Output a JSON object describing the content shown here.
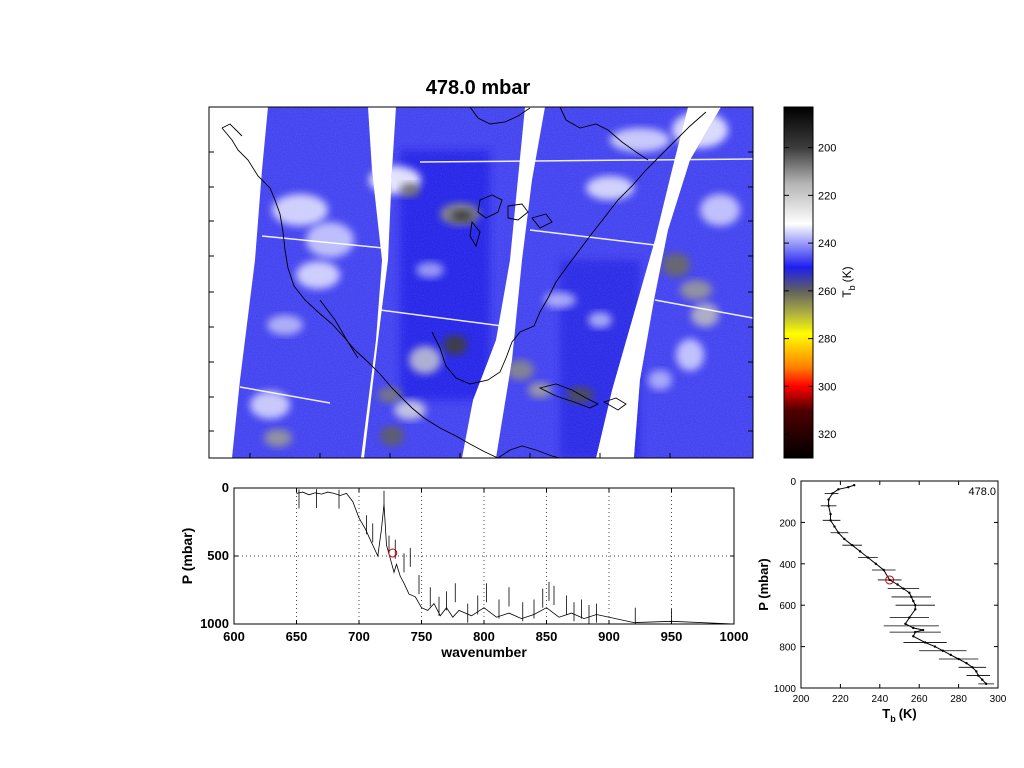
{
  "title": "478.0 mbar",
  "chart_data": [
    {
      "type": "heatmap",
      "title": "478.0 mbar",
      "description_of_content": null,
      "colorbar": {
        "label": "T_b (K)",
        "label_main": "T",
        "label_sub": "b",
        "label_unit": "(K)",
        "ticks": [
          200,
          220,
          240,
          260,
          280,
          300,
          320
        ],
        "range": [
          183,
          330
        ],
        "colormap_stops": [
          {
            "value": 183,
            "color": "#000000"
          },
          {
            "value": 200,
            "color": "#3c3c3c"
          },
          {
            "value": 215,
            "color": "#b4b4b4"
          },
          {
            "value": 232,
            "color": "#ffffff"
          },
          {
            "value": 250,
            "color": "#1e1ef0"
          },
          {
            "value": 260,
            "color": "#606060"
          },
          {
            "value": 270,
            "color": "#b4b440"
          },
          {
            "value": 278,
            "color": "#ffff00"
          },
          {
            "value": 292,
            "color": "#ff8000"
          },
          {
            "value": 300,
            "color": "#ff0000"
          },
          {
            "value": 310,
            "color": "#500000"
          },
          {
            "value": 330,
            "color": "#000000"
          }
        ]
      }
    },
    {
      "type": "line",
      "xlabel": "wavenumber",
      "ylabel": "P (mbar)",
      "xlim": [
        600,
        1000
      ],
      "ylim": [
        1000,
        0
      ],
      "y_reversed": true,
      "grid": true,
      "xticks": [
        600,
        650,
        700,
        750,
        800,
        850,
        900,
        950,
        1000
      ],
      "yticks": [
        0,
        500,
        1000
      ],
      "highlight": {
        "x": 727,
        "y": 478,
        "color": "#cc0000"
      },
      "series": [
        {
          "x": [
            650,
            655,
            660,
            665,
            670,
            675,
            680,
            685,
            690,
            695,
            700,
            705,
            710,
            715,
            718,
            720,
            722,
            725,
            728,
            730,
            733,
            736,
            740,
            745,
            750,
            755,
            760,
            765,
            770,
            775,
            780,
            790,
            800,
            810,
            820,
            830,
            840,
            850,
            860,
            870,
            880,
            890,
            920,
            950,
            1000
          ],
          "y": [
            40,
            30,
            50,
            35,
            45,
            30,
            40,
            55,
            40,
            100,
            220,
            300,
            400,
            500,
            300,
            120,
            420,
            520,
            620,
            560,
            650,
            700,
            780,
            800,
            880,
            900,
            850,
            940,
            880,
            950,
            900,
            940,
            880,
            950,
            920,
            960,
            930,
            880,
            950,
            920,
            960,
            930,
            990,
            980,
            1000
          ]
        }
      ],
      "spikes": [
        {
          "x": 652,
          "y": 10
        },
        {
          "x": 666,
          "y": 8
        },
        {
          "x": 684,
          "y": 12
        },
        {
          "x": 706,
          "y": 200
        },
        {
          "x": 711,
          "y": 260
        },
        {
          "x": 720,
          "y": 20
        },
        {
          "x": 724,
          "y": 350
        },
        {
          "x": 729,
          "y": 380
        },
        {
          "x": 736,
          "y": 480
        },
        {
          "x": 741,
          "y": 440
        },
        {
          "x": 748,
          "y": 640
        },
        {
          "x": 757,
          "y": 730
        },
        {
          "x": 764,
          "y": 800
        },
        {
          "x": 770,
          "y": 760
        },
        {
          "x": 777,
          "y": 700
        },
        {
          "x": 787,
          "y": 850
        },
        {
          "x": 795,
          "y": 790
        },
        {
          "x": 802,
          "y": 700
        },
        {
          "x": 812,
          "y": 820
        },
        {
          "x": 820,
          "y": 730
        },
        {
          "x": 831,
          "y": 840
        },
        {
          "x": 840,
          "y": 820
        },
        {
          "x": 847,
          "y": 740
        },
        {
          "x": 852,
          "y": 690
        },
        {
          "x": 856,
          "y": 720
        },
        {
          "x": 866,
          "y": 790
        },
        {
          "x": 872,
          "y": 840
        },
        {
          "x": 878,
          "y": 820
        },
        {
          "x": 884,
          "y": 860
        },
        {
          "x": 890,
          "y": 850
        },
        {
          "x": 921,
          "y": 880
        },
        {
          "x": 950,
          "y": 890
        }
      ]
    },
    {
      "type": "line",
      "xlabel": "T_b (K)",
      "xlabel_main": "T",
      "xlabel_sub": "b",
      "xlabel_unit": "(K)",
      "ylabel": "P (mbar)",
      "xlim": [
        200,
        300
      ],
      "ylim": [
        1000,
        0
      ],
      "y_reversed": true,
      "xticks": [
        200,
        220,
        240,
        260,
        280,
        300
      ],
      "yticks": [
        0,
        200,
        400,
        600,
        800,
        1000
      ],
      "annotation": "478.0",
      "highlight": {
        "x": 245,
        "y": 478,
        "color": "#cc0000"
      },
      "series": [
        {
          "x": [
            227,
            224,
            219,
            216,
            214,
            214,
            215,
            215,
            217,
            219,
            222,
            226,
            230,
            234,
            238,
            242,
            245,
            249,
            252,
            255,
            256,
            257,
            258,
            258,
            255,
            253,
            257,
            262,
            258,
            257,
            263,
            268,
            272,
            276,
            280,
            284,
            287,
            289,
            290,
            292,
            294
          ],
          "y": [
            20,
            30,
            40,
            60,
            90,
            120,
            160,
            190,
            220,
            250,
            280,
            310,
            340,
            370,
            400,
            430,
            478,
            500,
            520,
            540,
            560,
            580,
            600,
            620,
            660,
            690,
            710,
            720,
            730,
            750,
            780,
            800,
            820,
            840,
            860,
            880,
            900,
            920,
            940,
            960,
            980
          ]
        }
      ],
      "error_bars": [
        {
          "y": 60,
          "lo": 212,
          "hi": 219
        },
        {
          "y": 120,
          "lo": 210,
          "hi": 218
        },
        {
          "y": 190,
          "lo": 211,
          "hi": 220
        },
        {
          "y": 250,
          "lo": 215,
          "hi": 224
        },
        {
          "y": 310,
          "lo": 221,
          "hi": 231
        },
        {
          "y": 370,
          "lo": 229,
          "hi": 239
        },
        {
          "y": 430,
          "lo": 236,
          "hi": 248
        },
        {
          "y": 478,
          "lo": 239,
          "hi": 251
        },
        {
          "y": 520,
          "lo": 244,
          "hi": 260
        },
        {
          "y": 560,
          "lo": 246,
          "hi": 266
        },
        {
          "y": 600,
          "lo": 248,
          "hi": 268
        },
        {
          "y": 660,
          "lo": 245,
          "hi": 265
        },
        {
          "y": 700,
          "lo": 242,
          "hi": 270
        },
        {
          "y": 730,
          "lo": 245,
          "hi": 271
        },
        {
          "y": 780,
          "lo": 252,
          "hi": 274
        },
        {
          "y": 820,
          "lo": 260,
          "hi": 284
        },
        {
          "y": 860,
          "lo": 270,
          "hi": 290
        },
        {
          "y": 900,
          "lo": 280,
          "hi": 294
        },
        {
          "y": 940,
          "lo": 284,
          "hi": 296
        },
        {
          "y": 980,
          "lo": 290,
          "hi": 298
        }
      ]
    }
  ]
}
